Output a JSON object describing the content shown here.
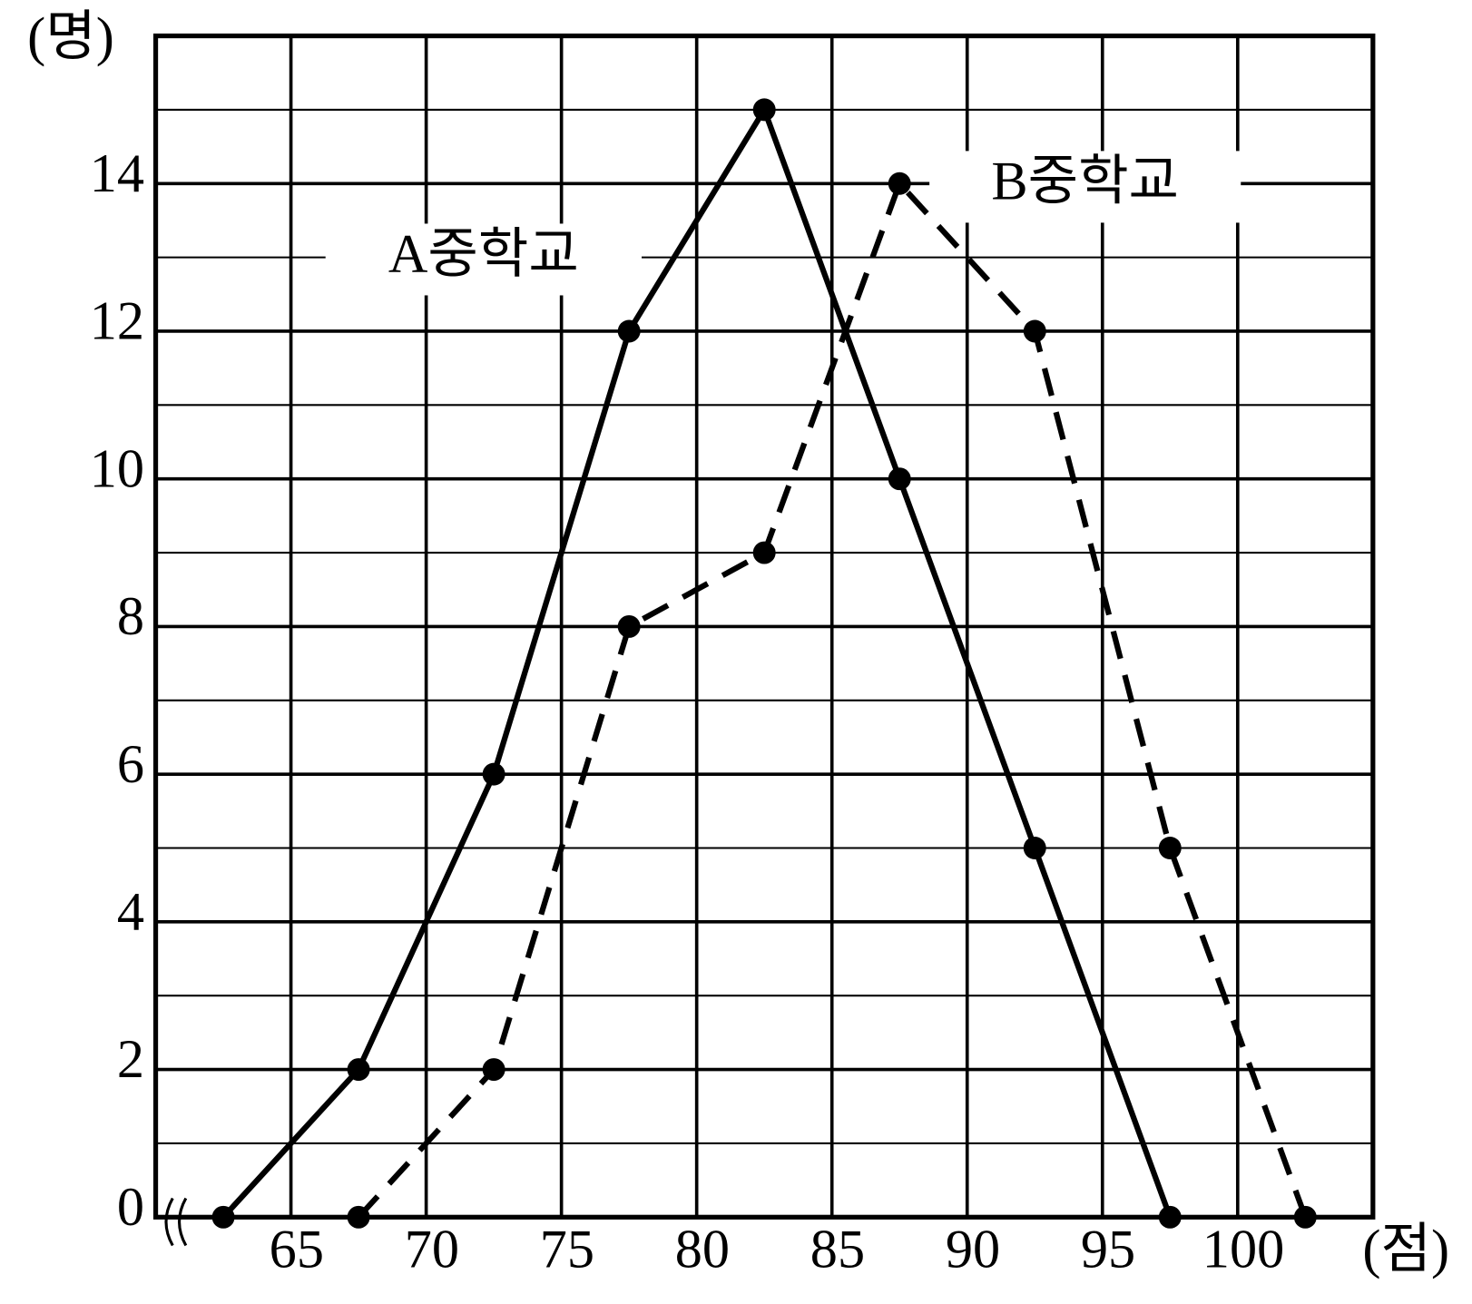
{
  "chart_data": {
    "type": "line",
    "x_label": "(점)",
    "y_label": "(명)",
    "series": [
      {
        "name": "A중학교",
        "color": "#000000",
        "dash": false,
        "x": [
          62.5,
          67.5,
          72.5,
          77.5,
          82.5,
          87.5,
          92.5,
          97.5
        ],
        "values": [
          0,
          2,
          6,
          12,
          15,
          10,
          5,
          0
        ]
      },
      {
        "name": "B중학교",
        "color": "#000000",
        "dash": true,
        "x": [
          67.5,
          72.5,
          77.5,
          82.5,
          87.5,
          92.5,
          97.5,
          102.5
        ],
        "values": [
          0,
          2,
          8,
          9,
          14,
          12,
          5,
          0
        ]
      }
    ],
    "xlim": [
      60,
      105
    ],
    "xticks": [
      65,
      70,
      75,
      80,
      85,
      90,
      95,
      100
    ],
    "ylim": [
      0,
      16
    ],
    "yticks": [
      0,
      2,
      4,
      6,
      8,
      10,
      12,
      14
    ],
    "grid": true
  }
}
